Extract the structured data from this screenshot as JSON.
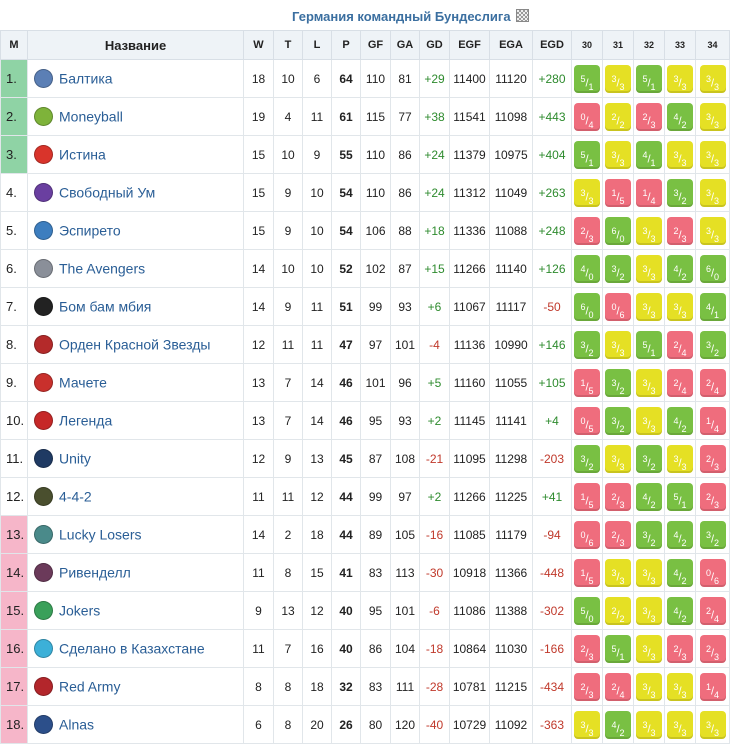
{
  "title": "Германия командный Бундеслига",
  "headers": {
    "pos": "М",
    "name": "Название",
    "w": "W",
    "t": "T",
    "l": "L",
    "p": "P",
    "gf": "GF",
    "ga": "GA",
    "gd": "GD",
    "egf": "EGF",
    "ega": "EGA",
    "egd": "EGD",
    "rounds": [
      "30",
      "31",
      "32",
      "33",
      "34"
    ]
  },
  "colors": {
    "green_zone": "#8fd3a5",
    "red_zone": "#f6b6c9",
    "win": "#79c043",
    "draw": "#e5e024",
    "loss": "#ef6d7d",
    "link": "#2a5e96"
  },
  "rows": [
    {
      "pos": "1.",
      "zone": "g",
      "logo_icon": "baltika-logo",
      "logo_color": "#5b7fb5",
      "name": "Балтика",
      "w": "18",
      "t": "10",
      "l": "6",
      "p": "64",
      "gf": "110",
      "ga": "81",
      "gd": "+29",
      "egf": "11400",
      "ega": "11120",
      "egd": "+280",
      "rounds": [
        {
          "r": "w",
          "a": "5",
          "b": "1"
        },
        {
          "r": "d",
          "a": "3",
          "b": "3"
        },
        {
          "r": "w",
          "a": "5",
          "b": "1"
        },
        {
          "r": "d",
          "a": "3",
          "b": "3"
        },
        {
          "r": "d",
          "a": "3",
          "b": "3"
        }
      ]
    },
    {
      "pos": "2.",
      "zone": "g",
      "logo_icon": "moneyball-logo",
      "logo_color": "#7eb33a",
      "name": "Moneyball",
      "w": "19",
      "t": "4",
      "l": "11",
      "p": "61",
      "gf": "115",
      "ga": "77",
      "gd": "+38",
      "egf": "11541",
      "ega": "11098",
      "egd": "+443",
      "rounds": [
        {
          "r": "l",
          "a": "0",
          "b": "4"
        },
        {
          "r": "d",
          "a": "2",
          "b": "2"
        },
        {
          "r": "l",
          "a": "2",
          "b": "3"
        },
        {
          "r": "w",
          "a": "4",
          "b": "2"
        },
        {
          "r": "d",
          "a": "3",
          "b": "3"
        }
      ]
    },
    {
      "pos": "3.",
      "zone": "g",
      "logo_icon": "truth-logo",
      "logo_color": "#d9342b",
      "name": "Истина",
      "w": "15",
      "t": "10",
      "l": "9",
      "p": "55",
      "gf": "110",
      "ga": "86",
      "gd": "+24",
      "egf": "11379",
      "ega": "10975",
      "egd": "+404",
      "rounds": [
        {
          "r": "w",
          "a": "5",
          "b": "1"
        },
        {
          "r": "d",
          "a": "3",
          "b": "3"
        },
        {
          "r": "w",
          "a": "4",
          "b": "1"
        },
        {
          "r": "d",
          "a": "3",
          "b": "3"
        },
        {
          "r": "d",
          "a": "3",
          "b": "3"
        }
      ]
    },
    {
      "pos": "4.",
      "zone": "",
      "logo_icon": "free-mind-logo",
      "logo_color": "#6a3fa0",
      "name": "Свободный Ум",
      "w": "15",
      "t": "9",
      "l": "10",
      "p": "54",
      "gf": "110",
      "ga": "86",
      "gd": "+24",
      "egf": "11312",
      "ega": "11049",
      "egd": "+263",
      "rounds": [
        {
          "r": "d",
          "a": "3",
          "b": "3"
        },
        {
          "r": "l",
          "a": "1",
          "b": "5"
        },
        {
          "r": "l",
          "a": "1",
          "b": "4"
        },
        {
          "r": "w",
          "a": "3",
          "b": "2"
        },
        {
          "r": "d",
          "a": "3",
          "b": "3"
        }
      ]
    },
    {
      "pos": "5.",
      "zone": "",
      "logo_icon": "espireto-logo",
      "logo_color": "#3d7ebf",
      "name": "Эспирето",
      "w": "15",
      "t": "9",
      "l": "10",
      "p": "54",
      "gf": "106",
      "ga": "88",
      "gd": "+18",
      "egf": "11336",
      "ega": "11088",
      "egd": "+248",
      "rounds": [
        {
          "r": "l",
          "a": "2",
          "b": "3"
        },
        {
          "r": "w",
          "a": "6",
          "b": "0"
        },
        {
          "r": "d",
          "a": "3",
          "b": "3"
        },
        {
          "r": "l",
          "a": "2",
          "b": "3"
        },
        {
          "r": "d",
          "a": "3",
          "b": "3"
        }
      ]
    },
    {
      "pos": "6.",
      "zone": "",
      "logo_icon": "avengers-logo",
      "logo_color": "#8a8f99",
      "name": "The Avengers",
      "w": "14",
      "t": "10",
      "l": "10",
      "p": "52",
      "gf": "102",
      "ga": "87",
      "gd": "+15",
      "egf": "11266",
      "ega": "11140",
      "egd": "+126",
      "rounds": [
        {
          "r": "w",
          "a": "4",
          "b": "0"
        },
        {
          "r": "w",
          "a": "3",
          "b": "2"
        },
        {
          "r": "d",
          "a": "3",
          "b": "3"
        },
        {
          "r": "w",
          "a": "4",
          "b": "2"
        },
        {
          "r": "w",
          "a": "6",
          "b": "0"
        }
      ]
    },
    {
      "pos": "7.",
      "zone": "",
      "logo_icon": "bom-bam-logo",
      "logo_color": "#222222",
      "name": "Бом бам мбия",
      "w": "14",
      "t": "9",
      "l": "11",
      "p": "51",
      "gf": "99",
      "ga": "93",
      "gd": "+6",
      "egf": "11067",
      "ega": "11117",
      "egd": "-50",
      "rounds": [
        {
          "r": "w",
          "a": "6",
          "b": "0"
        },
        {
          "r": "l",
          "a": "0",
          "b": "6"
        },
        {
          "r": "d",
          "a": "3",
          "b": "3"
        },
        {
          "r": "d",
          "a": "3",
          "b": "3"
        },
        {
          "r": "w",
          "a": "4",
          "b": "1"
        }
      ]
    },
    {
      "pos": "8.",
      "zone": "",
      "logo_icon": "red-star-order-logo",
      "logo_color": "#b42a2a",
      "name": "Орден Красной Звезды",
      "w": "12",
      "t": "11",
      "l": "11",
      "p": "47",
      "gf": "97",
      "ga": "101",
      "gd": "-4",
      "egf": "11136",
      "ega": "10990",
      "egd": "+146",
      "rounds": [
        {
          "r": "w",
          "a": "3",
          "b": "2"
        },
        {
          "r": "d",
          "a": "3",
          "b": "3"
        },
        {
          "r": "w",
          "a": "5",
          "b": "1"
        },
        {
          "r": "l",
          "a": "2",
          "b": "4"
        },
        {
          "r": "w",
          "a": "3",
          "b": "2"
        }
      ]
    },
    {
      "pos": "9.",
      "zone": "",
      "logo_icon": "machete-logo",
      "logo_color": "#c9302c",
      "name": "Мачете",
      "w": "13",
      "t": "7",
      "l": "14",
      "p": "46",
      "gf": "101",
      "ga": "96",
      "gd": "+5",
      "egf": "11160",
      "ega": "11055",
      "egd": "+105",
      "rounds": [
        {
          "r": "l",
          "a": "1",
          "b": "5"
        },
        {
          "r": "w",
          "a": "3",
          "b": "2"
        },
        {
          "r": "d",
          "a": "3",
          "b": "3"
        },
        {
          "r": "l",
          "a": "2",
          "b": "4"
        },
        {
          "r": "l",
          "a": "2",
          "b": "4"
        }
      ]
    },
    {
      "pos": "10.",
      "zone": "",
      "logo_icon": "legend-logo",
      "logo_color": "#c62828",
      "name": "Легенда",
      "w": "13",
      "t": "7",
      "l": "14",
      "p": "46",
      "gf": "95",
      "ga": "93",
      "gd": "+2",
      "egf": "11145",
      "ega": "11141",
      "egd": "+4",
      "rounds": [
        {
          "r": "l",
          "a": "0",
          "b": "5"
        },
        {
          "r": "w",
          "a": "3",
          "b": "2"
        },
        {
          "r": "d",
          "a": "3",
          "b": "3"
        },
        {
          "r": "w",
          "a": "4",
          "b": "2"
        },
        {
          "r": "l",
          "a": "1",
          "b": "4"
        }
      ]
    },
    {
      "pos": "11.",
      "zone": "",
      "logo_icon": "unity-logo",
      "logo_color": "#1f3a63",
      "name": "Unity",
      "w": "12",
      "t": "9",
      "l": "13",
      "p": "45",
      "gf": "87",
      "ga": "108",
      "gd": "-21",
      "egf": "11095",
      "ega": "11298",
      "egd": "-203",
      "rounds": [
        {
          "r": "w",
          "a": "3",
          "b": "2"
        },
        {
          "r": "d",
          "a": "3",
          "b": "3"
        },
        {
          "r": "w",
          "a": "3",
          "b": "2"
        },
        {
          "r": "d",
          "a": "3",
          "b": "3"
        },
        {
          "r": "l",
          "a": "2",
          "b": "3"
        }
      ]
    },
    {
      "pos": "12.",
      "zone": "",
      "logo_icon": "4-4-2-logo",
      "logo_color": "#4a4f2e",
      "name": "4-4-2",
      "w": "11",
      "t": "11",
      "l": "12",
      "p": "44",
      "gf": "99",
      "ga": "97",
      "gd": "+2",
      "egf": "11266",
      "ega": "11225",
      "egd": "+41",
      "rounds": [
        {
          "r": "l",
          "a": "1",
          "b": "5"
        },
        {
          "r": "l",
          "a": "2",
          "b": "3"
        },
        {
          "r": "w",
          "a": "4",
          "b": "2"
        },
        {
          "r": "w",
          "a": "5",
          "b": "1"
        },
        {
          "r": "l",
          "a": "2",
          "b": "3"
        }
      ]
    },
    {
      "pos": "13.",
      "zone": "r",
      "logo_icon": "lucky-losers-logo",
      "logo_color": "#4a8a8a",
      "name": "Lucky Losers",
      "w": "14",
      "t": "2",
      "l": "18",
      "p": "44",
      "gf": "89",
      "ga": "105",
      "gd": "-16",
      "egf": "11085",
      "ega": "11179",
      "egd": "-94",
      "rounds": [
        {
          "r": "l",
          "a": "0",
          "b": "6"
        },
        {
          "r": "l",
          "a": "2",
          "b": "3"
        },
        {
          "r": "w",
          "a": "3",
          "b": "2"
        },
        {
          "r": "w",
          "a": "4",
          "b": "2"
        },
        {
          "r": "w",
          "a": "3",
          "b": "2"
        }
      ]
    },
    {
      "pos": "14.",
      "zone": "r",
      "logo_icon": "rivendell-logo",
      "logo_color": "#6b3a5a",
      "name": "Ривенделл",
      "w": "11",
      "t": "8",
      "l": "15",
      "p": "41",
      "gf": "83",
      "ga": "113",
      "gd": "-30",
      "egf": "10918",
      "ega": "11366",
      "egd": "-448",
      "rounds": [
        {
          "r": "l",
          "a": "1",
          "b": "5"
        },
        {
          "r": "d",
          "a": "3",
          "b": "3"
        },
        {
          "r": "d",
          "a": "3",
          "b": "3"
        },
        {
          "r": "w",
          "a": "4",
          "b": "2"
        },
        {
          "r": "l",
          "a": "0",
          "b": "6"
        }
      ]
    },
    {
      "pos": "15.",
      "zone": "r",
      "logo_icon": "jokers-logo",
      "logo_color": "#3aa05a",
      "name": "Jokers",
      "w": "9",
      "t": "13",
      "l": "12",
      "p": "40",
      "gf": "95",
      "ga": "101",
      "gd": "-6",
      "egf": "11086",
      "ega": "11388",
      "egd": "-302",
      "rounds": [
        {
          "r": "w",
          "a": "5",
          "b": "0"
        },
        {
          "r": "d",
          "a": "2",
          "b": "2"
        },
        {
          "r": "d",
          "a": "3",
          "b": "3"
        },
        {
          "r": "w",
          "a": "4",
          "b": "2"
        },
        {
          "r": "l",
          "a": "2",
          "b": "4"
        }
      ]
    },
    {
      "pos": "16.",
      "zone": "r",
      "logo_icon": "kazakhstan-logo",
      "logo_color": "#3cb0d8",
      "name": "Сделано в Казахстане",
      "w": "11",
      "t": "7",
      "l": "16",
      "p": "40",
      "gf": "86",
      "ga": "104",
      "gd": "-18",
      "egf": "10864",
      "ega": "11030",
      "egd": "-166",
      "rounds": [
        {
          "r": "l",
          "a": "2",
          "b": "3"
        },
        {
          "r": "w",
          "a": "5",
          "b": "1"
        },
        {
          "r": "d",
          "a": "3",
          "b": "3"
        },
        {
          "r": "l",
          "a": "2",
          "b": "3"
        },
        {
          "r": "l",
          "a": "2",
          "b": "3"
        }
      ]
    },
    {
      "pos": "17.",
      "zone": "r",
      "logo_icon": "red-army-logo",
      "logo_color": "#b3262b",
      "name": "Red Army",
      "w": "8",
      "t": "8",
      "l": "18",
      "p": "32",
      "gf": "83",
      "ga": "111",
      "gd": "-28",
      "egf": "10781",
      "ega": "11215",
      "egd": "-434",
      "rounds": [
        {
          "r": "l",
          "a": "2",
          "b": "3"
        },
        {
          "r": "l",
          "a": "2",
          "b": "4"
        },
        {
          "r": "d",
          "a": "3",
          "b": "3"
        },
        {
          "r": "d",
          "a": "3",
          "b": "3"
        },
        {
          "r": "l",
          "a": "1",
          "b": "4"
        }
      ]
    },
    {
      "pos": "18.",
      "zone": "r",
      "logo_icon": "alnas-logo",
      "logo_color": "#2c4f8a",
      "name": "Alnas",
      "w": "6",
      "t": "8",
      "l": "20",
      "p": "26",
      "gf": "80",
      "ga": "120",
      "gd": "-40",
      "egf": "10729",
      "ega": "11092",
      "egd": "-363",
      "rounds": [
        {
          "r": "d",
          "a": "3",
          "b": "3"
        },
        {
          "r": "w",
          "a": "4",
          "b": "2"
        },
        {
          "r": "d",
          "a": "3",
          "b": "3"
        },
        {
          "r": "d",
          "a": "3",
          "b": "3"
        },
        {
          "r": "d",
          "a": "3",
          "b": "3"
        }
      ]
    }
  ]
}
